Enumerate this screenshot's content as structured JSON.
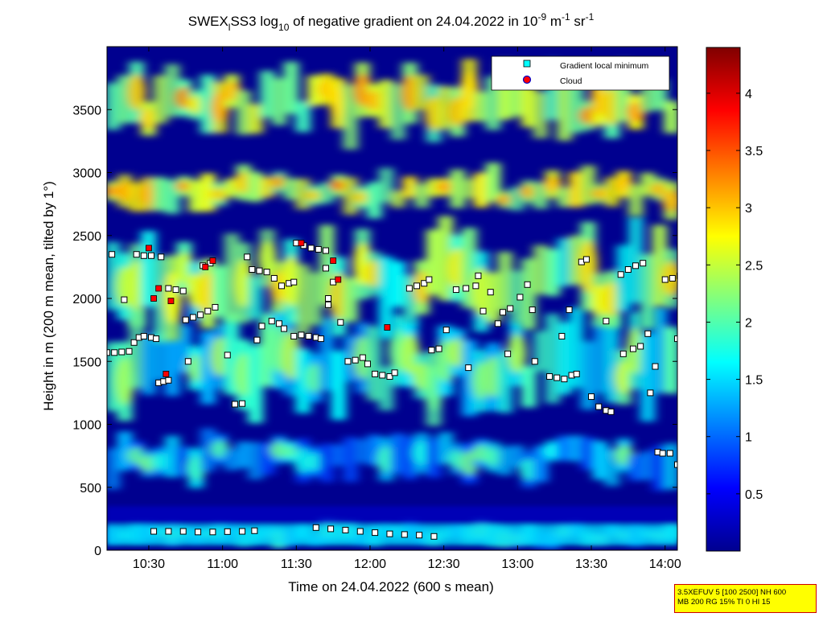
{
  "chart_data": {
    "type": "heatmap",
    "title": {
      "prefix": "SWEX",
      "prefix_sub": "l",
      "mid": "SS3 log",
      "log_sub": "10",
      "suffix": " of negative gradient on 24.04.2022 in 10",
      "exp1": "-9",
      "unit1": " m",
      "exp2": "-1",
      "unit2": " sr",
      "exp3": "-1"
    },
    "xlabel": "Time on 24.04.2022 (600 s mean)",
    "ylabel": "Height in m (200 m mean, tilted by 1°)",
    "xlim": [
      "10:13",
      "14:05"
    ],
    "ylim": [
      0,
      4000
    ],
    "x_ticks": [
      "10:30",
      "11:00",
      "11:30",
      "12:00",
      "12:30",
      "13:00",
      "13:30",
      "14:00"
    ],
    "y_ticks": [
      0,
      500,
      1000,
      1500,
      2000,
      2500,
      3000,
      3500
    ],
    "colorbar": {
      "colormap": "jet",
      "range": [
        0,
        4.4
      ],
      "ticks": [
        "0.5",
        "1",
        "1.5",
        "2",
        "2.5",
        "3",
        "3.5",
        "4"
      ]
    },
    "legend": {
      "placement": "top-right",
      "entries": [
        {
          "label": "Gradient local minimum",
          "marker": "square",
          "color": "#00ffff"
        },
        {
          "label": "Cloud",
          "marker": "circle",
          "color": "#ff0000"
        }
      ]
    },
    "layers": [
      {
        "height_range": [
          40,
          200
        ],
        "level": 1.4,
        "description": "surface layer"
      },
      {
        "height_range": [
          550,
          900
        ],
        "level": 1.2
      },
      {
        "height_range": [
          1100,
          1800
        ],
        "level": 1.6
      },
      {
        "height_range": [
          1800,
          2500
        ],
        "level": 2.0
      },
      {
        "height_range": [
          2700,
          3000
        ],
        "level": 2.4
      },
      {
        "height_range": [
          3300,
          3800
        ],
        "level": 2.3
      }
    ],
    "gradient_minima": [
      [
        "10:13",
        1570
      ],
      [
        "10:16",
        1570
      ],
      [
        "10:19",
        1575
      ],
      [
        "10:22",
        1580
      ],
      [
        "10:24",
        1650
      ],
      [
        "10:26",
        1690
      ],
      [
        "10:28",
        1700
      ],
      [
        "10:31",
        1690
      ],
      [
        "10:33",
        1680
      ],
      [
        "10:25",
        2350
      ],
      [
        "10:28",
        2340
      ],
      [
        "10:31",
        2340
      ],
      [
        "10:35",
        2330
      ],
      [
        "10:15",
        2350
      ],
      [
        "10:20",
        1990
      ],
      [
        "10:34",
        1330
      ],
      [
        "10:36",
        1340
      ],
      [
        "10:38",
        1350
      ],
      [
        "10:38",
        2080
      ],
      [
        "10:41",
        2070
      ],
      [
        "10:44",
        2060
      ],
      [
        "10:45",
        1830
      ],
      [
        "10:48",
        1850
      ],
      [
        "10:51",
        1870
      ],
      [
        "10:54",
        1900
      ],
      [
        "10:57",
        1930
      ],
      [
        "10:46",
        1500
      ],
      [
        "10:52",
        2260
      ],
      [
        "10:55",
        2280
      ],
      [
        "11:02",
        1550
      ],
      [
        "11:05",
        1160
      ],
      [
        "11:08",
        1165
      ],
      [
        "11:10",
        2330
      ],
      [
        "11:12",
        2230
      ],
      [
        "11:15",
        2220
      ],
      [
        "11:18",
        2210
      ],
      [
        "11:21",
        2160
      ],
      [
        "11:20",
        1820
      ],
      [
        "11:23",
        1800
      ],
      [
        "11:25",
        1760
      ],
      [
        "11:14",
        1670
      ],
      [
        "11:16",
        1780
      ],
      [
        "11:24",
        2100
      ],
      [
        "11:27",
        2120
      ],
      [
        "11:29",
        2130
      ],
      [
        "11:29",
        1700
      ],
      [
        "11:32",
        1710
      ],
      [
        "11:35",
        1700
      ],
      [
        "11:38",
        1690
      ],
      [
        "11:40",
        1680
      ],
      [
        "11:30",
        2440
      ],
      [
        "11:33",
        2420
      ],
      [
        "11:36",
        2400
      ],
      [
        "11:39",
        2390
      ],
      [
        "11:42",
        2380
      ],
      [
        "11:42",
        2240
      ],
      [
        "11:45",
        2130
      ],
      [
        "11:43",
        2000
      ],
      [
        "11:48",
        1810
      ],
      [
        "11:43",
        1950
      ],
      [
        "11:51",
        1500
      ],
      [
        "11:54",
        1510
      ],
      [
        "11:57",
        1530
      ],
      [
        "11:59",
        1480
      ],
      [
        "12:02",
        1400
      ],
      [
        "12:05",
        1390
      ],
      [
        "12:08",
        1380
      ],
      [
        "12:10",
        1410
      ],
      [
        "12:16",
        2080
      ],
      [
        "12:19",
        2100
      ],
      [
        "12:22",
        2120
      ],
      [
        "12:24",
        2150
      ],
      [
        "12:25",
        1590
      ],
      [
        "12:28",
        1600
      ],
      [
        "12:31",
        1750
      ],
      [
        "12:35",
        2070
      ],
      [
        "12:39",
        2080
      ],
      [
        "12:43",
        2100
      ],
      [
        "12:44",
        2180
      ],
      [
        "12:40",
        1450
      ],
      [
        "12:46",
        1900
      ],
      [
        "12:49",
        2050
      ],
      [
        "12:52",
        1800
      ],
      [
        "12:54",
        1890
      ],
      [
        "12:57",
        1920
      ],
      [
        "13:01",
        2010
      ],
      [
        "13:04",
        2110
      ],
      [
        "13:06",
        1910
      ],
      [
        "12:56",
        1560
      ],
      [
        "13:07",
        1500
      ],
      [
        "13:13",
        1380
      ],
      [
        "13:16",
        1370
      ],
      [
        "13:19",
        1360
      ],
      [
        "13:22",
        1390
      ],
      [
        "13:24",
        1400
      ],
      [
        "13:18",
        1700
      ],
      [
        "13:21",
        1910
      ],
      [
        "13:26",
        2290
      ],
      [
        "13:28",
        2310
      ],
      [
        "13:30",
        1220
      ],
      [
        "13:33",
        1140
      ],
      [
        "13:36",
        1110
      ],
      [
        "13:38",
        1100
      ],
      [
        "13:36",
        1820
      ],
      [
        "13:43",
        1560
      ],
      [
        "13:47",
        1600
      ],
      [
        "13:50",
        1620
      ],
      [
        "13:42",
        2190
      ],
      [
        "13:45",
        2230
      ],
      [
        "13:48",
        2260
      ],
      [
        "13:51",
        2280
      ],
      [
        "13:53",
        1720
      ],
      [
        "13:54",
        1250
      ],
      [
        "13:56",
        1460
      ],
      [
        "13:57",
        780
      ],
      [
        "13:59",
        770
      ],
      [
        "14:02",
        770
      ],
      [
        "14:05",
        680
      ],
      [
        "14:00",
        2150
      ],
      [
        "14:03",
        2160
      ],
      [
        "14:06",
        2180
      ],
      [
        "14:08",
        2200
      ],
      [
        "14:05",
        1680
      ],
      [
        "10:32",
        150
      ],
      [
        "10:38",
        150
      ],
      [
        "10:44",
        150
      ],
      [
        "10:50",
        145
      ],
      [
        "10:56",
        145
      ],
      [
        "11:02",
        148
      ],
      [
        "11:08",
        150
      ],
      [
        "11:13",
        155
      ],
      [
        "11:38",
        180
      ],
      [
        "11:44",
        170
      ],
      [
        "11:50",
        160
      ],
      [
        "11:56",
        150
      ],
      [
        "12:02",
        140
      ],
      [
        "12:08",
        130
      ],
      [
        "12:14",
        125
      ],
      [
        "12:20",
        120
      ],
      [
        "12:26",
        110
      ]
    ],
    "clouds": [
      [
        "10:30",
        2400
      ],
      [
        "10:37",
        1400
      ],
      [
        "10:34",
        2080
      ],
      [
        "10:32",
        2000
      ],
      [
        "10:39",
        1980
      ],
      [
        "10:53",
        2250
      ],
      [
        "10:56",
        2300
      ],
      [
        "11:32",
        2440
      ],
      [
        "11:45",
        2300
      ],
      [
        "11:47",
        2150
      ],
      [
        "12:07",
        1770
      ]
    ]
  },
  "info_box": {
    "line1": "3.5XEFUV 5 [100 2500] NH 600",
    "line2": "MB 200 RG 15% TI 0 HI 15"
  }
}
